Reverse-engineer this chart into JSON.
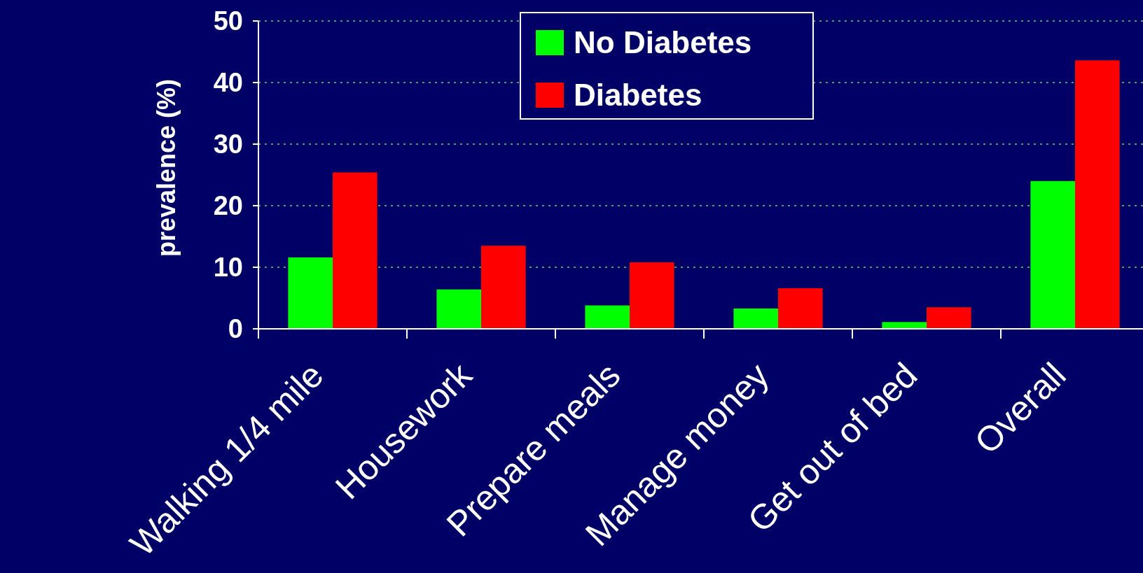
{
  "chart_data": {
    "type": "bar",
    "ylabel": "prevalence (%)",
    "categories": [
      "Walking 1/4 mile",
      "Housework",
      "Prepare meals",
      "Manage money",
      "Get out of bed",
      "Overall"
    ],
    "series": [
      {
        "name": "No Diabetes",
        "color": "#00ff00",
        "values": [
          11.6,
          6.4,
          3.8,
          3.3,
          1.1,
          24.0
        ]
      },
      {
        "name": "Diabetes",
        "color": "#ff0000",
        "values": [
          25.4,
          13.5,
          10.8,
          6.6,
          3.5,
          43.6
        ]
      }
    ],
    "ylim": [
      0,
      50
    ],
    "yticks": [
      0,
      10,
      20,
      30,
      40,
      50
    ],
    "grid": "y",
    "legend": "top"
  }
}
